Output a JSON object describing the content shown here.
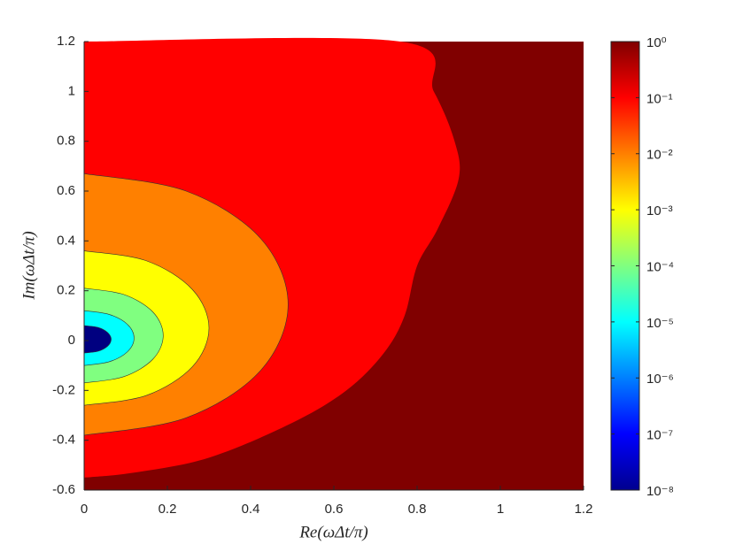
{
  "chart_data": {
    "type": "contour",
    "xlabel": "Re(ωΔt/π)",
    "ylabel": "Im(ωΔt/π)",
    "xlim": [
      0,
      1.2
    ],
    "ylim": [
      -0.6,
      1.2
    ],
    "xticks": [
      0,
      0.2,
      0.4,
      0.6,
      0.8,
      1,
      1.2
    ],
    "yticks": [
      -0.6,
      -0.4,
      -0.2,
      0,
      0.2,
      0.4,
      0.6,
      0.8,
      1,
      1.2
    ],
    "background_color": "#800000",
    "regions": [
      {
        "color": "#ff0000",
        "x": [
          0,
          0.76,
          0.84,
          0.89,
          0.9,
          0.85,
          0.8,
          0.77,
          0.72,
          0.63,
          0.5,
          0.3,
          0.12,
          0
        ],
        "y": [
          1.2,
          1.2,
          1.0,
          0.8,
          0.65,
          0.45,
          0.3,
          0.1,
          -0.05,
          -0.2,
          -0.33,
          -0.47,
          -0.53,
          -0.55
        ]
      },
      {
        "color": "#ff8000",
        "x": [
          0,
          0.245,
          0.424,
          0.49,
          0.424,
          0.245,
          0
        ],
        "y": [
          0.67,
          0.6,
          0.41,
          0.145,
          -0.12,
          -0.31,
          -0.38
        ]
      },
      {
        "color": "#ffff00",
        "x": [
          0,
          0.15,
          0.26,
          0.3,
          0.26,
          0.15,
          0
        ],
        "y": [
          0.36,
          0.32,
          0.205,
          0.05,
          -0.105,
          -0.22,
          -0.26
        ]
      },
      {
        "color": "#80ff80",
        "x": [
          0,
          0.095,
          0.165,
          0.19,
          0.165,
          0.095,
          0
        ],
        "y": [
          0.21,
          0.185,
          0.115,
          0.02,
          -0.075,
          -0.145,
          -0.17
        ]
      },
      {
        "color": "#00ffff",
        "x": [
          0,
          0.06,
          0.104,
          0.12,
          0.104,
          0.06,
          0
        ],
        "y": [
          0.12,
          0.105,
          0.065,
          0.01,
          -0.045,
          -0.085,
          -0.1
        ]
      },
      {
        "color": "#000080",
        "x": [
          0,
          0.033,
          0.056,
          0.065,
          0.056,
          0.033,
          0
        ],
        "y": [
          0.06,
          0.053,
          0.033,
          0.005,
          -0.023,
          -0.043,
          -0.05
        ]
      }
    ],
    "colorbar": {
      "log": true,
      "clim": [
        1e-08,
        1
      ],
      "ticks": [
        {
          "value": 1,
          "label": "10⁰"
        },
        {
          "value": 0.1,
          "label": "10⁻¹"
        },
        {
          "value": 0.01,
          "label": "10⁻²"
        },
        {
          "value": 0.001,
          "label": "10⁻³"
        },
        {
          "value": 0.0001,
          "label": "10⁻⁴"
        },
        {
          "value": 1e-05,
          "label": "10⁻⁵"
        },
        {
          "value": 1e-06,
          "label": "10⁻⁶"
        },
        {
          "value": 1e-07,
          "label": "10⁻⁷"
        },
        {
          "value": 1e-08,
          "label": "10⁻⁸"
        }
      ]
    }
  }
}
